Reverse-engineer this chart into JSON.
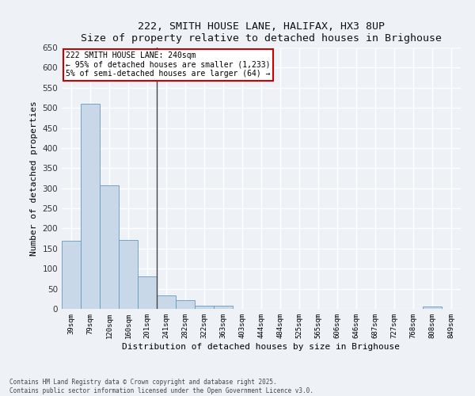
{
  "title": "222, SMITH HOUSE LANE, HALIFAX, HX3 8UP",
  "subtitle": "Size of property relative to detached houses in Brighouse",
  "xlabel": "Distribution of detached houses by size in Brighouse",
  "ylabel": "Number of detached properties",
  "bar_color": "#c8d8e8",
  "bar_edge_color": "#6699bb",
  "categories": [
    "39sqm",
    "79sqm",
    "120sqm",
    "160sqm",
    "201sqm",
    "241sqm",
    "282sqm",
    "322sqm",
    "363sqm",
    "403sqm",
    "444sqm",
    "484sqm",
    "525sqm",
    "565sqm",
    "606sqm",
    "646sqm",
    "687sqm",
    "727sqm",
    "768sqm",
    "808sqm",
    "849sqm"
  ],
  "values": [
    170,
    510,
    308,
    172,
    81,
    34,
    22,
    8,
    7,
    0,
    0,
    0,
    0,
    0,
    0,
    0,
    0,
    0,
    0,
    5,
    0
  ],
  "ylim": [
    0,
    650
  ],
  "yticks": [
    0,
    50,
    100,
    150,
    200,
    250,
    300,
    350,
    400,
    450,
    500,
    550,
    600,
    650
  ],
  "annotation_text": "222 SMITH HOUSE LANE: 240sqm\n← 95% of detached houses are smaller (1,233)\n5% of semi-detached houses are larger (64) →",
  "annotation_box_color": "#ffffff",
  "annotation_box_edge": "#cc0000",
  "vline_x_index": 5,
  "vline_color": "#444444",
  "background_color": "#eef2f7",
  "grid_color": "#ffffff",
  "footer_line1": "Contains HM Land Registry data © Crown copyright and database right 2025.",
  "footer_line2": "Contains public sector information licensed under the Open Government Licence v3.0."
}
